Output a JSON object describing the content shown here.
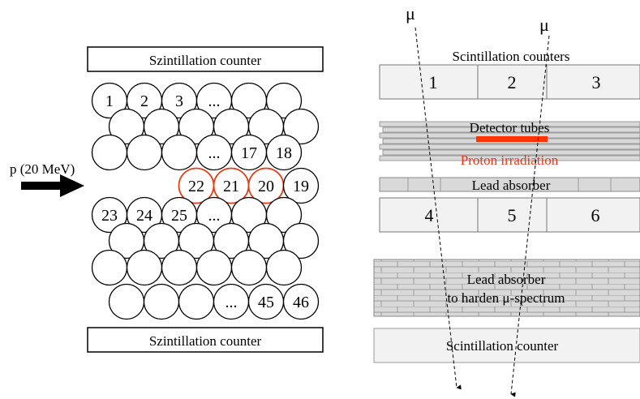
{
  "left_panel": {
    "top_counter_label": "Szintillation counter",
    "bottom_counter_label": "Szintillation counter",
    "beam_label": "p (20 MeV)",
    "tube_labels": {
      "t1": "1",
      "t2": "2",
      "t3": "3",
      "t_dots_row1": "...",
      "t_dots_row3": "...",
      "t17": "17",
      "t18": "18",
      "t22": "22",
      "t21": "21",
      "t20": "20",
      "t19": "19",
      "t23": "23",
      "t24": "24",
      "t25": "25",
      "t_dots_row5": "...",
      "t_dots_row8": "...",
      "t45": "45",
      "t46": "46"
    }
  },
  "right_panel": {
    "mu_left": "μ",
    "mu_right": "μ",
    "top_counters_title": "Scintillation counters",
    "top_counter_numbers": [
      "1",
      "2",
      "3"
    ],
    "detector_tubes_label": "Detector tubes",
    "proton_irradiation_label": "Proton irradiation",
    "lead_absorber_label": "Lead absorber",
    "middle_counter_numbers": [
      "4",
      "5",
      "6"
    ],
    "lead_absorber_harden_line1": "Lead absorber",
    "lead_absorber_harden_line2": "to harden μ-spectrum",
    "bottom_counter_label": "Scintillation counter"
  },
  "colors": {
    "irradiated_tube_outline": "#e0401a",
    "proton_bar": "#ff3300",
    "proton_text": "#e8381a",
    "counter_fill": "#f2f2f2",
    "absorber_fill": "#d9d9d9"
  }
}
